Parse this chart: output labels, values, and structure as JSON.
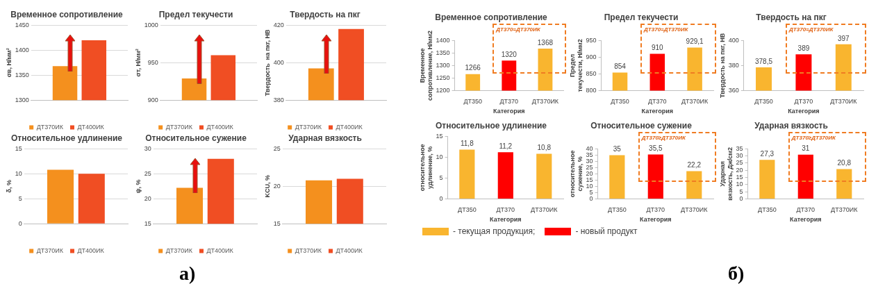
{
  "chart_data": [
    {
      "type": "bar",
      "title": "Временное сопротивление",
      "ylabel": "σв, Н/мм²",
      "categories": [
        null
      ],
      "series": [
        {
          "name": "ДТ370ИК",
          "color": "#f4901e",
          "values": [
            1368
          ]
        },
        {
          "name": "ДТ400ИК",
          "color": "#f04e23",
          "values": [
            1420
          ]
        }
      ],
      "ylim": [
        1300,
        1450
      ],
      "yticks": [
        1300,
        1350,
        1400,
        1450
      ],
      "grid": "y",
      "legend": "bottom"
    },
    {
      "type": "bar",
      "title": "Предел текучести",
      "ylabel": "σт, Н/мм²",
      "categories": [
        null
      ],
      "series": [
        {
          "name": "ДТ370ИК",
          "color": "#f4901e",
          "values": [
            929
          ]
        },
        {
          "name": "ДТ400ИК",
          "color": "#f04e23",
          "values": [
            960
          ]
        }
      ],
      "ylim": [
        900,
        1000
      ],
      "yticks": [
        900,
        950,
        1000
      ],
      "grid": "y",
      "legend": "bottom"
    },
    {
      "type": "bar",
      "title": "Твердость на пкг",
      "ylabel": "Твердость  на пкг, НВ",
      "categories": [
        null
      ],
      "series": [
        {
          "name": "ДТ370ИК",
          "color": "#f4901e",
          "values": [
            397
          ]
        },
        {
          "name": "ДТ400ИК",
          "color": "#f04e23",
          "values": [
            418
          ]
        }
      ],
      "ylim": [
        380,
        420
      ],
      "yticks": [
        380,
        400,
        420
      ],
      "grid": "y",
      "legend": "bottom"
    },
    {
      "type": "bar",
      "title": "Относительное удлинение",
      "ylabel": "δ, %",
      "categories": [
        null
      ],
      "series": [
        {
          "name": "ДТ370ИК",
          "color": "#f4901e",
          "values": [
            10.8
          ]
        },
        {
          "name": "ДТ400ИК",
          "color": "#f04e23",
          "values": [
            10
          ]
        }
      ],
      "ylim": [
        0,
        15
      ],
      "yticks": [
        0,
        5,
        10,
        15
      ],
      "grid": "y",
      "legend": "bottom"
    },
    {
      "type": "bar",
      "title": "Относительное сужение",
      "ylabel": "ψ, %",
      "categories": [
        null
      ],
      "series": [
        {
          "name": "ДТ370ИК",
          "color": "#f4901e",
          "values": [
            22.2
          ]
        },
        {
          "name": "ДТ400ИК",
          "color": "#f04e23",
          "values": [
            28
          ]
        }
      ],
      "ylim": [
        15,
        30
      ],
      "yticks": [
        15,
        20,
        25,
        30
      ],
      "grid": "y",
      "legend": "bottom"
    },
    {
      "type": "bar",
      "title": "Ударная вязкость",
      "ylabel": "KCU, %",
      "categories": [
        null
      ],
      "series": [
        {
          "name": "ДТ370ИК",
          "color": "#f4901e",
          "values": [
            20.8
          ]
        },
        {
          "name": "ДТ400ИК",
          "color": "#f04e23",
          "values": [
            21
          ]
        }
      ],
      "ylim": [
        15,
        25
      ],
      "yticks": [
        15,
        20,
        25
      ],
      "grid": "y",
      "legend": "bottom",
      "annotations": [
        "а)"
      ]
    },
    {
      "type": "bar",
      "title": "Временное сопротивление",
      "xlabel": "Категория",
      "ylabel": "Временное сопротивление, Н/мм2",
      "categories": [
        "ДТ350",
        "ДТ370",
        "ДТ370ИК"
      ],
      "stacked": true,
      "series": [
        {
          "name": "- текущая продукция;",
          "color": "#f9b52f",
          "values": [
            1266,
            null,
            1368
          ],
          "value_labels": [
            "1266",
            null,
            "1368"
          ]
        },
        {
          "name": "- новый продукт",
          "color": "#ff0000",
          "values": [
            null,
            1320,
            null
          ],
          "value_labels": [
            null,
            "1320",
            null
          ]
        }
      ],
      "ylim": [
        1200,
        1400
      ],
      "yticks": [
        1200,
        1250,
        1300,
        1350,
        1400
      ],
      "legend": "bottom",
      "annotations": [
        "ДТ370=ДТ370ИК"
      ]
    },
    {
      "type": "bar",
      "title": "Предел текучести",
      "xlabel": "Категория",
      "ylabel": "Предел текучести, Н/мм2",
      "categories": [
        "ДТ350",
        "ДТ370",
        "ДТ370ИК"
      ],
      "stacked": true,
      "series": [
        {
          "color": "#f9b52f",
          "values": [
            854,
            null,
            929.1
          ],
          "value_labels": [
            "854",
            null,
            "929,1"
          ]
        },
        {
          "color": "#ff0000",
          "values": [
            null,
            910,
            null
          ],
          "value_labels": [
            null,
            "910",
            null
          ]
        }
      ],
      "ylim": [
        800,
        950
      ],
      "yticks": [
        800,
        850,
        900,
        950
      ],
      "annotations": [
        "ДТ370=ДТ370ИК"
      ]
    },
    {
      "type": "bar",
      "title": "Твердость на пкг",
      "xlabel": "Категория",
      "ylabel": "Твердость на пкг, НВ",
      "categories": [
        "ДТ350",
        "ДТ370",
        "ДТ370ИК"
      ],
      "stacked": true,
      "series": [
        {
          "color": "#f9b52f",
          "values": [
            378.5,
            null,
            397
          ],
          "value_labels": [
            "378,5",
            null,
            "397"
          ]
        },
        {
          "color": "#ff0000",
          "values": [
            null,
            389,
            null
          ],
          "value_labels": [
            null,
            "389",
            null
          ]
        }
      ],
      "ylim": [
        360,
        400
      ],
      "yticks": [
        360,
        380,
        400
      ],
      "annotations": [
        "ДТ370=ДТ370ИК"
      ]
    },
    {
      "type": "bar",
      "title": "Относительное удлинение",
      "xlabel": "Категория",
      "ylabel": "относительное удлинение, %",
      "categories": [
        "ДТ350",
        "ДТ370",
        "ДТ370ИК"
      ],
      "stacked": true,
      "series": [
        {
          "color": "#f9b52f",
          "values": [
            11.8,
            null,
            10.8
          ],
          "value_labels": [
            "11,8",
            null,
            "10,8"
          ]
        },
        {
          "color": "#ff0000",
          "values": [
            null,
            11.2,
            null
          ],
          "value_labels": [
            null,
            "11,2",
            null
          ]
        }
      ],
      "ylim": [
        0,
        15
      ],
      "yticks": [
        0,
        5,
        10,
        15
      ]
    },
    {
      "type": "bar",
      "title": "Относительное сужение",
      "xlabel": "Категория",
      "ylabel": "относительное сужение, %",
      "categories": [
        "ДТ350",
        "ДТ370",
        "ДТ370ИК"
      ],
      "stacked": true,
      "series": [
        {
          "color": "#f9b52f",
          "values": [
            35,
            null,
            22.2
          ],
          "value_labels": [
            "35",
            null,
            "22,2"
          ]
        },
        {
          "color": "#ff0000",
          "values": [
            null,
            35.5,
            null
          ],
          "value_labels": [
            null,
            "35,5",
            null
          ]
        }
      ],
      "ylim": [
        0,
        40
      ],
      "yticks": [
        0,
        5,
        10,
        15,
        20,
        25,
        30,
        35,
        40
      ],
      "annotations": [
        "ДТ370≥ДТ370ИК"
      ]
    },
    {
      "type": "bar",
      "title": "Ударная вязкость",
      "xlabel": "Категория",
      "ylabel": "Ударная вязкость, Дж/см2",
      "categories": [
        "ДТ350",
        "ДТ370",
        "ДТ370ИК"
      ],
      "stacked": true,
      "series": [
        {
          "color": "#f9b52f",
          "values": [
            27.3,
            null,
            20.8
          ],
          "value_labels": [
            "27,3",
            null,
            "20,8"
          ]
        },
        {
          "color": "#ff0000",
          "values": [
            null,
            31,
            null
          ],
          "value_labels": [
            null,
            "31",
            null
          ]
        }
      ],
      "ylim": [
        0,
        35
      ],
      "yticks": [
        0,
        5,
        10,
        15,
        20,
        25,
        30,
        35
      ],
      "annotations": [
        "ДТ370≥ДТ370ИК",
        "б)"
      ]
    }
  ]
}
